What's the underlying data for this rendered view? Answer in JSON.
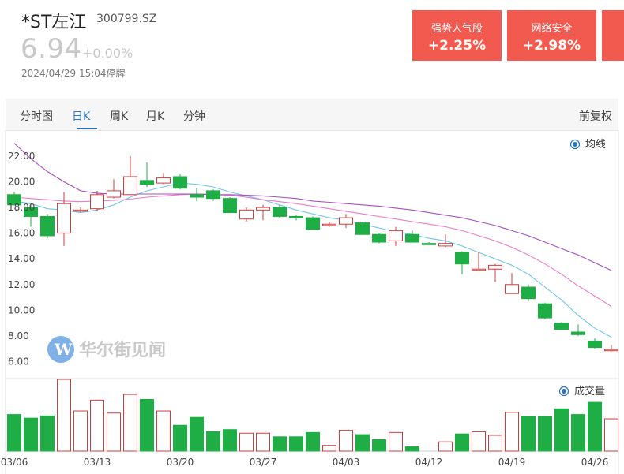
{
  "stock": {
    "name": "*ST左江",
    "code": "300799.SZ",
    "price": "6.94",
    "change": "+0.00%",
    "status": "2024/04/29 15:04停牌"
  },
  "concepts": [
    {
      "name": "强势人气股",
      "change": "+2.25%"
    },
    {
      "name": "网络安全",
      "change": "+2.98%"
    }
  ],
  "tabs": [
    "分时图",
    "日K",
    "周K",
    "月K",
    "分钟"
  ],
  "active_tab": "日K",
  "adjust_label": "前复权",
  "legend": {
    "ma": "均线",
    "volume": "成交量"
  },
  "watermark": "华尔街见闻",
  "colors": {
    "up": "#d23c3c",
    "down": "#1fae45",
    "concept_bg": "#f2594f",
    "accent": "#2a74c4"
  },
  "chart_data": {
    "type": "candlestick",
    "ylim": [
      5.6,
      23.1
    ],
    "y_ticks": [
      6,
      8,
      10,
      12,
      14,
      16,
      18,
      20,
      22
    ],
    "y_tick_labels": [
      "6.00",
      "8.00",
      "10.00",
      "12.00",
      "14.00",
      "16.00",
      "18.00",
      "20.00",
      "22.00"
    ],
    "x_tick_labels": [
      {
        "label": "03/06",
        "index": 0
      },
      {
        "label": "03/13",
        "index": 5
      },
      {
        "label": "03/20",
        "index": 10
      },
      {
        "label": "03/27",
        "index": 15
      },
      {
        "label": "04/03",
        "index": 20
      },
      {
        "label": "04/12",
        "index": 25
      },
      {
        "label": "04/19",
        "index": 30
      },
      {
        "label": "04/26",
        "index": 35
      }
    ],
    "candles": [
      {
        "o": 19.0,
        "h": 19.2,
        "l": 18.2,
        "c": 18.2
      },
      {
        "o": 18.0,
        "h": 18.3,
        "l": 16.5,
        "c": 17.3
      },
      {
        "o": 17.3,
        "h": 17.5,
        "l": 15.6,
        "c": 15.8
      },
      {
        "o": 16.0,
        "h": 19.2,
        "l": 15.0,
        "c": 18.3
      },
      {
        "o": 17.8,
        "h": 18.0,
        "l": 17.6,
        "c": 17.8
      },
      {
        "o": 17.9,
        "h": 19.3,
        "l": 17.7,
        "c": 19.0
      },
      {
        "o": 18.8,
        "h": 20.2,
        "l": 18.7,
        "c": 19.3
      },
      {
        "o": 19.0,
        "h": 22.0,
        "l": 19.0,
        "c": 20.4
      },
      {
        "o": 20.1,
        "h": 21.5,
        "l": 19.6,
        "c": 19.8
      },
      {
        "o": 19.9,
        "h": 20.7,
        "l": 19.8,
        "c": 20.3
      },
      {
        "o": 20.4,
        "h": 20.6,
        "l": 19.4,
        "c": 19.5
      },
      {
        "o": 19.0,
        "h": 19.5,
        "l": 18.5,
        "c": 18.8
      },
      {
        "o": 19.3,
        "h": 19.4,
        "l": 18.5,
        "c": 18.7
      },
      {
        "o": 18.7,
        "h": 18.8,
        "l": 17.6,
        "c": 17.6
      },
      {
        "o": 17.1,
        "h": 18.0,
        "l": 16.9,
        "c": 17.8
      },
      {
        "o": 17.8,
        "h": 18.2,
        "l": 17.0,
        "c": 18.0
      },
      {
        "o": 18.0,
        "h": 18.2,
        "l": 17.2,
        "c": 17.3
      },
      {
        "o": 17.3,
        "h": 17.4,
        "l": 17.0,
        "c": 17.2
      },
      {
        "o": 17.2,
        "h": 17.3,
        "l": 16.3,
        "c": 16.3
      },
      {
        "o": 16.6,
        "h": 16.9,
        "l": 16.5,
        "c": 16.7
      },
      {
        "o": 16.7,
        "h": 17.5,
        "l": 16.4,
        "c": 17.2
      },
      {
        "o": 16.8,
        "h": 16.9,
        "l": 15.9,
        "c": 15.9
      },
      {
        "o": 15.9,
        "h": 16.0,
        "l": 15.2,
        "c": 15.3
      },
      {
        "o": 15.4,
        "h": 16.5,
        "l": 15.0,
        "c": 16.2
      },
      {
        "o": 15.9,
        "h": 16.2,
        "l": 15.3,
        "c": 15.3
      },
      {
        "o": 15.2,
        "h": 15.3,
        "l": 15.1,
        "c": 15.1
      },
      {
        "o": 15.0,
        "h": 15.9,
        "l": 14.9,
        "c": 15.2
      },
      {
        "o": 14.5,
        "h": 14.6,
        "l": 12.8,
        "c": 13.6
      },
      {
        "o": 13.2,
        "h": 14.5,
        "l": 13.1,
        "c": 13.2
      },
      {
        "o": 13.2,
        "h": 13.6,
        "l": 12.2,
        "c": 13.5
      },
      {
        "o": 11.3,
        "h": 12.9,
        "l": 11.3,
        "c": 12.0
      },
      {
        "o": 11.8,
        "h": 12.0,
        "l": 10.7,
        "c": 10.9
      },
      {
        "o": 10.5,
        "h": 10.6,
        "l": 9.3,
        "c": 9.4
      },
      {
        "o": 9.0,
        "h": 9.1,
        "l": 8.5,
        "c": 8.5
      },
      {
        "o": 8.3,
        "h": 8.9,
        "l": 8.0,
        "c": 8.1
      },
      {
        "o": 7.6,
        "h": 7.8,
        "l": 7.0,
        "c": 7.1
      },
      {
        "o": 6.9,
        "h": 7.3,
        "l": 6.8,
        "c": 6.94
      }
    ],
    "ma_lines": [
      {
        "color": "#6ec6e8",
        "values": [
          18.5,
          18.3,
          17.9,
          17.8,
          17.6,
          17.8,
          18.2,
          18.8,
          19.3,
          19.6,
          19.9,
          19.8,
          19.6,
          19.2,
          18.9,
          18.6,
          18.2,
          17.8,
          17.5,
          17.2,
          17.0,
          16.7,
          16.4,
          16.1,
          15.9,
          15.6,
          15.4,
          15.0,
          14.5,
          14.0,
          13.5,
          12.8,
          11.8,
          10.8,
          9.6,
          8.6,
          7.9
        ]
      },
      {
        "color": "#e87cc8",
        "values": [
          18.8,
          18.7,
          18.6,
          18.5,
          18.45,
          18.5,
          18.55,
          18.65,
          18.8,
          18.9,
          19.0,
          19.05,
          19.0,
          18.95,
          18.8,
          18.6,
          18.45,
          18.3,
          18.1,
          17.9,
          17.7,
          17.5,
          17.3,
          17.1,
          16.9,
          16.7,
          16.5,
          16.2,
          15.8,
          15.4,
          14.9,
          14.3,
          13.6,
          12.8,
          11.9,
          11.1,
          10.3
        ]
      },
      {
        "color": "#a74fc0",
        "values": [
          23.0,
          21.8,
          20.8,
          20.0,
          19.3,
          19.1,
          19.05,
          19.05,
          19.05,
          19.05,
          19.05,
          19.05,
          19.0,
          19.0,
          18.95,
          18.9,
          18.8,
          18.7,
          18.5,
          18.4,
          18.3,
          18.2,
          18.1,
          17.95,
          17.8,
          17.6,
          17.4,
          17.2,
          16.9,
          16.6,
          16.2,
          15.8,
          15.3,
          14.8,
          14.3,
          13.7,
          13.1
        ]
      }
    ],
    "volume": [
      0.51,
      0.46,
      0.49,
      1.0,
      0.56,
      0.71,
      0.53,
      0.79,
      0.72,
      0.56,
      0.36,
      0.47,
      0.27,
      0.3,
      0.25,
      0.25,
      0.2,
      0.2,
      0.26,
      0.08,
      0.29,
      0.23,
      0.16,
      0.26,
      0.06,
      0.0,
      0.13,
      0.24,
      0.27,
      0.22,
      0.54,
      0.48,
      0.48,
      0.59,
      0.51,
      0.68,
      0.45
    ]
  }
}
